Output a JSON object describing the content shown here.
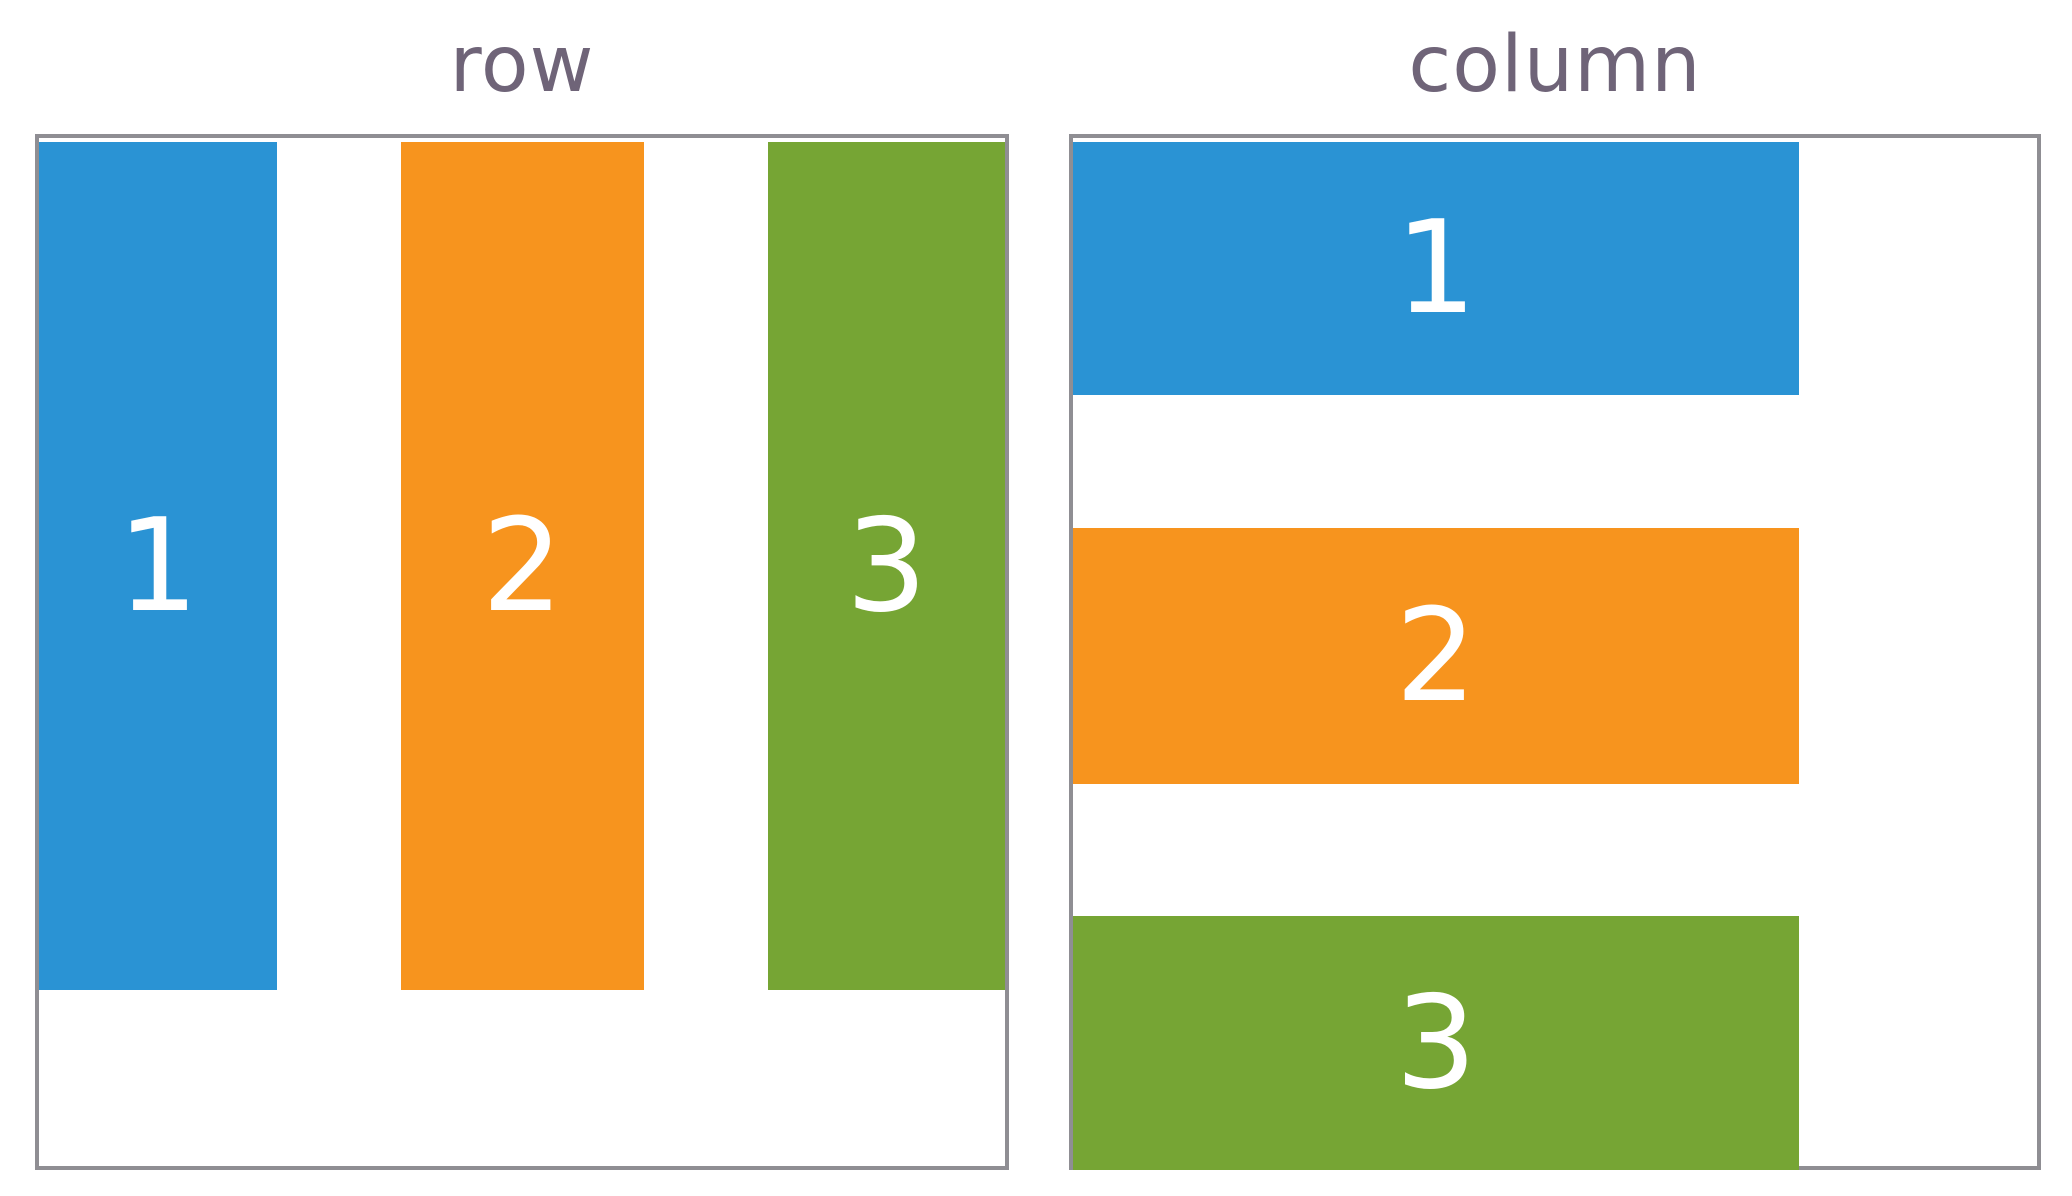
{
  "panels": {
    "row": {
      "title": "row",
      "items": [
        {
          "label": "1",
          "color": "#2a93d4"
        },
        {
          "label": "2",
          "color": "#f7941e"
        },
        {
          "label": "3",
          "color": "#76a534"
        }
      ]
    },
    "column": {
      "title": "column",
      "items": [
        {
          "label": "1",
          "color": "#2a93d4"
        },
        {
          "label": "2",
          "color": "#f7941e"
        },
        {
          "label": "3",
          "color": "#76a534"
        }
      ]
    }
  },
  "colors": {
    "frame_border": "#8f8e93",
    "title_text": "#6f6478",
    "item_text": "#ffffff"
  }
}
